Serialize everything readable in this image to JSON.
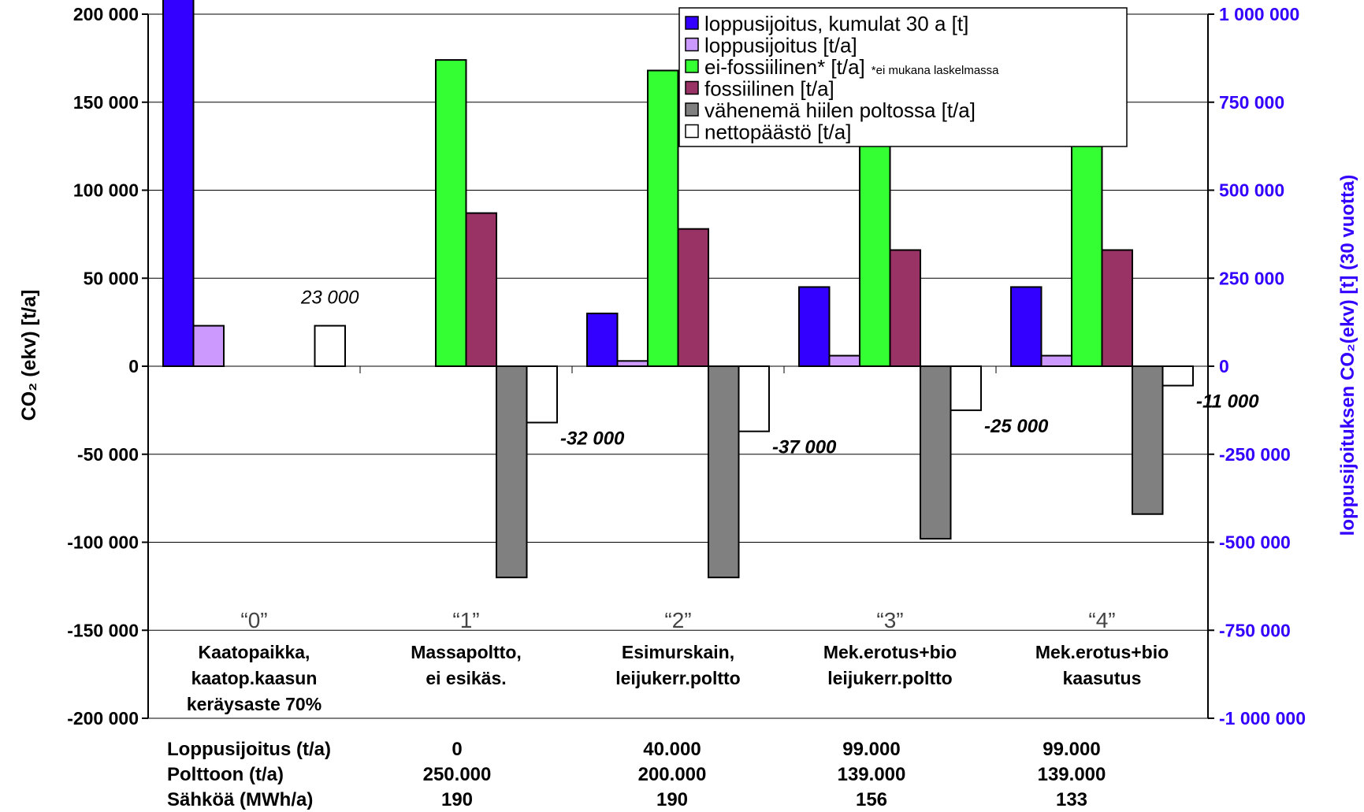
{
  "chart_data": {
    "type": "bar",
    "primary_axis": {
      "title": "CO₂ (ekv) [t/a]",
      "ylim": [
        -200000,
        200000
      ],
      "ticks": [
        200000,
        150000,
        100000,
        50000,
        0,
        -50000,
        -100000,
        -150000,
        -200000
      ],
      "tick_labels": [
        "200 000",
        "150 000",
        "100 000",
        "50 000",
        "0",
        "-50 000",
        "-100 000",
        "-150 000",
        "-200 000"
      ],
      "gridlines": true
    },
    "secondary_axis": {
      "title": "loppusijoituksen CO₂(ekv) [t] (30 vuotta)",
      "ylim": [
        -1000000,
        1000000
      ],
      "tick_labels": [
        "1 000 000",
        "750 000",
        "500 000",
        "250 000",
        "0",
        "-250 000",
        "-500 000",
        "-750 000",
        "-1 000 000"
      ],
      "color": "#3300ff"
    },
    "scenarios": [
      "“0”",
      "“1”",
      "“2”",
      "“3”",
      "“4”"
    ],
    "categories": [
      [
        "Kaatopaikka,",
        "kaatop.kaasun",
        "keräysaste 70%"
      ],
      [
        "Massapoltto,",
        "ei esikäs."
      ],
      [
        "Esimurskain,",
        "leijukerr.poltto"
      ],
      [
        "Mek.erotus+bio",
        "leijukerr.poltto"
      ],
      [
        "Mek.erotus+bio",
        "kaasutus"
      ]
    ],
    "series": [
      {
        "name": "loppusijoitus, kumulat 30 a [t]",
        "axis": "secondary",
        "color": "#3300ff",
        "values": [
          1075000,
          0,
          150000,
          225000,
          225000
        ]
      },
      {
        "name": "loppusijoitus [t/a]",
        "axis": "primary",
        "color": "#cc99ff",
        "values": [
          23000,
          0,
          3000,
          6000,
          6000
        ]
      },
      {
        "name": "ei-fossiilinen* [t/a]",
        "axis": "primary",
        "color": "#33ff33",
        "values": [
          0,
          174000,
          168000,
          131000,
          131000
        ]
      },
      {
        "name": "fossiilinen [t/a]",
        "axis": "primary",
        "color": "#993366",
        "values": [
          0,
          87000,
          78000,
          66000,
          66000
        ]
      },
      {
        "name": "vähenemä hiilen poltossa [t/a]",
        "axis": "primary",
        "color": "#808080",
        "values": [
          0,
          -120000,
          -120000,
          -98000,
          -84000
        ]
      },
      {
        "name": "nettopäästö [t/a]",
        "axis": "primary",
        "color": "#ffffff",
        "values": [
          23000,
          -32000,
          -37000,
          -25000,
          -11000
        ]
      }
    ],
    "data_labels": [
      "23 000",
      "-32 000",
      "-37 000",
      "-25 000",
      "-11 000"
    ],
    "legend": {
      "position": "top-right",
      "note": "*ei mukana laskelmassa"
    },
    "table": {
      "rows": [
        {
          "label": "Loppusijoitus (t/a)",
          "values": [
            "0",
            "40.000",
            "99.000",
            "99.000"
          ]
        },
        {
          "label": "Polttoon (t/a)",
          "values": [
            "250.000",
            "200.000",
            "139.000",
            "139.000"
          ]
        },
        {
          "label": "Sähköä (MWh/a)",
          "values": [
            "190",
            "190",
            "156",
            "133"
          ]
        }
      ]
    }
  }
}
